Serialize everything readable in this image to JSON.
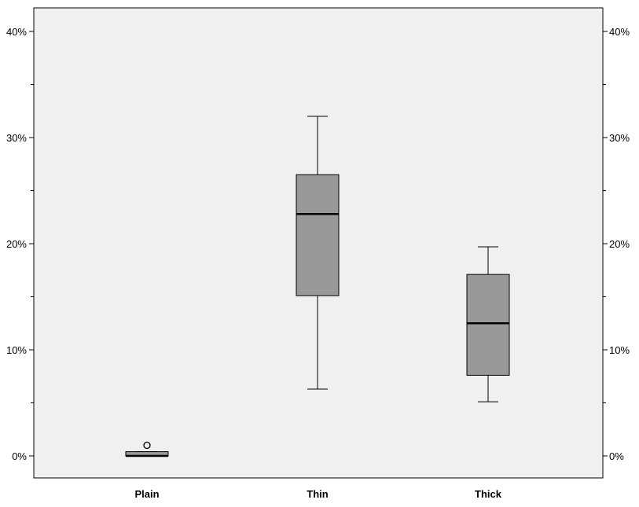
{
  "chart_data": {
    "type": "boxplot",
    "title": "",
    "xlabel": "",
    "ylabel": "",
    "ylim": [
      -2,
      42
    ],
    "y_ticks": [
      {
        "value": 0,
        "label": "0%"
      },
      {
        "value": 10,
        "label": "10%"
      },
      {
        "value": 20,
        "label": "20%"
      },
      {
        "value": 30,
        "label": "30%"
      },
      {
        "value": 40,
        "label": "40%"
      }
    ],
    "y_minor_ticks": [
      5,
      15,
      25,
      35
    ],
    "dual_y_axis": true,
    "grid": false,
    "categories": [
      "Plain",
      "Thin",
      "Thick"
    ],
    "boxes": [
      {
        "category": "Plain",
        "whisker_low": 0.0,
        "q1": 0.0,
        "median": 0.0,
        "q3": 0.4,
        "whisker_high": 0.4,
        "outliers": [
          1.0
        ]
      },
      {
        "category": "Thin",
        "whisker_low": 6.3,
        "q1": 15.1,
        "median": 22.8,
        "q3": 26.5,
        "whisker_high": 32.0,
        "outliers": []
      },
      {
        "category": "Thick",
        "whisker_low": 5.1,
        "q1": 7.6,
        "median": 12.5,
        "q3": 17.1,
        "whisker_high": 19.7,
        "outliers": []
      }
    ],
    "colors": {
      "plot_background": "#f0f0f0",
      "box_fill": "#999999",
      "stroke": "#000000"
    }
  }
}
